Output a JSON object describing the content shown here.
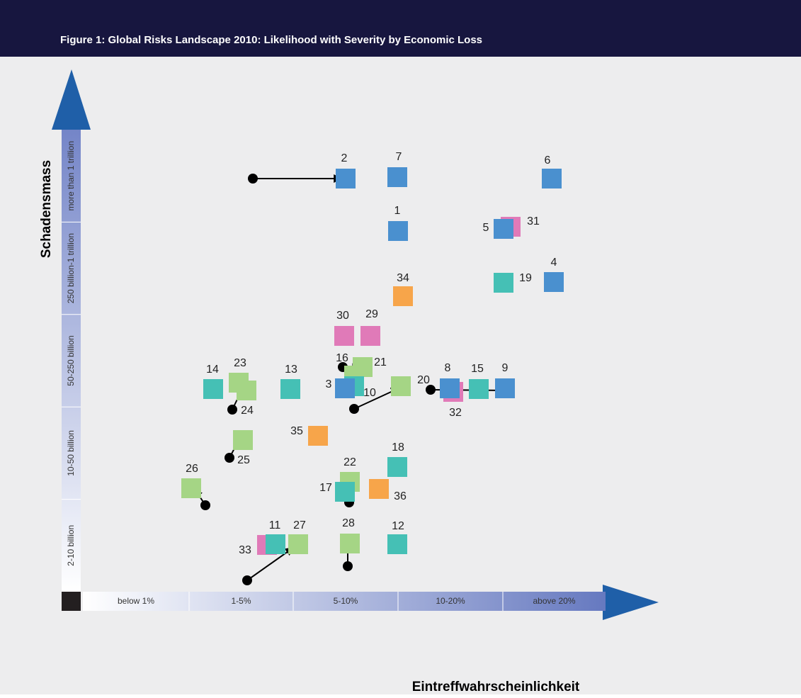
{
  "header": {
    "title": "Figure 1: Global Risks Landscape 2010: Likelihood with Severity by Economic Loss"
  },
  "y_axis": {
    "label": "Schadensmass",
    "bands": [
      "2-10 billion",
      "10-50 billion",
      "50-250 billion",
      "250 billion-1 trillion",
      "more than 1 trillion"
    ]
  },
  "x_axis": {
    "label": "Eintreffwahrscheinlichkeit",
    "bands": [
      "below 1%",
      "1-5%",
      "5-10%",
      "10-20%",
      "above 20%"
    ]
  },
  "nodes": [
    {
      "label": "2",
      "color": "#4a90cf"
    },
    {
      "label": "7",
      "color": "#4a90cf"
    },
    {
      "label": "6",
      "color": "#4a90cf"
    },
    {
      "label": "1",
      "color": "#4a90cf"
    },
    {
      "label": "31",
      "color": "#e07ab8"
    },
    {
      "label": "5",
      "color": "#4a90cf"
    },
    {
      "label": "4",
      "color": "#4a90cf"
    },
    {
      "label": "19",
      "color": "#45c0b5"
    },
    {
      "label": "34",
      "color": "#f7a54a"
    },
    {
      "label": "30",
      "color": "#e07ab8"
    },
    {
      "label": "29",
      "color": "#e07ab8"
    },
    {
      "label": "16",
      "color": "#a5d585"
    },
    {
      "label": "21",
      "color": "#a5d585"
    },
    {
      "label": "10",
      "color": "#45c0b5"
    },
    {
      "label": "3",
      "color": "#4a90cf"
    },
    {
      "label": "20",
      "color": "#a5d585"
    },
    {
      "label": "32",
      "color": "#e07ab8"
    },
    {
      "label": "8",
      "color": "#4a90cf"
    },
    {
      "label": "15",
      "color": "#45c0b5"
    },
    {
      "label": "9",
      "color": "#4a90cf"
    },
    {
      "label": "14",
      "color": "#45c0b5"
    },
    {
      "label": "23",
      "color": "#a5d585"
    },
    {
      "label": "24",
      "color": "#a5d585"
    },
    {
      "label": "13",
      "color": "#45c0b5"
    },
    {
      "label": "35",
      "color": "#f7a54a"
    },
    {
      "label": "25",
      "color": "#a5d585"
    },
    {
      "label": "18",
      "color": "#45c0b5"
    },
    {
      "label": "22",
      "color": "#a5d585"
    },
    {
      "label": "17",
      "color": "#45c0b5"
    },
    {
      "label": "36",
      "color": "#f7a54a"
    },
    {
      "label": "26",
      "color": "#a5d585"
    },
    {
      "label": "33",
      "color": "#e07ab8"
    },
    {
      "label": "11",
      "color": "#45c0b5"
    },
    {
      "label": "27",
      "color": "#a5d585"
    },
    {
      "label": "28",
      "color": "#a5d585"
    },
    {
      "label": "12",
      "color": "#45c0b5"
    }
  ]
}
